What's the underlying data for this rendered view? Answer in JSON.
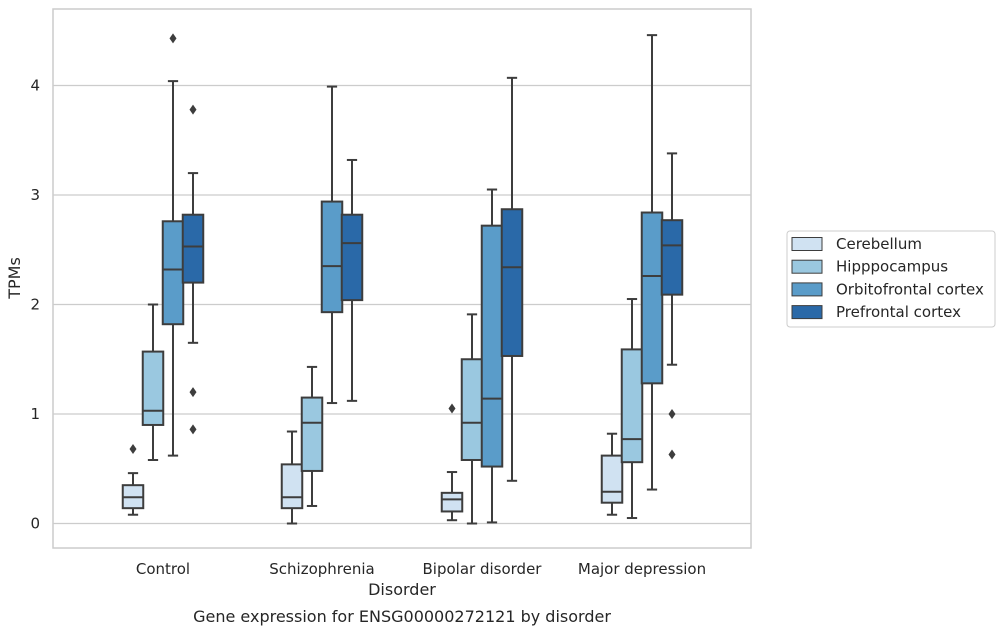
{
  "chart_data": {
    "type": "box",
    "caption": "Gene expression for ENSG00000272121 by disorder",
    "xlabel": "Disorder",
    "ylabel": "TPMs",
    "ylim": [
      -0.2,
      4.7
    ],
    "yticks": [
      0,
      1,
      2,
      3,
      4
    ],
    "grid": "horizontal",
    "legend_position": "right",
    "categories": [
      "Control",
      "Schizophrenia",
      "Bipolar disorder",
      "Major depression"
    ],
    "series": [
      {
        "name": "Cerebellum",
        "color": "#d0e2f2",
        "boxes": [
          {
            "category": "Control",
            "whisker_low": 0.08,
            "q1": 0.14,
            "median": 0.24,
            "q3": 0.35,
            "whisker_high": 0.46,
            "outliers": [
              0.68
            ]
          },
          {
            "category": "Schizophrenia",
            "whisker_low": 0.0,
            "q1": 0.14,
            "median": 0.24,
            "q3": 0.54,
            "whisker_high": 0.84,
            "outliers": []
          },
          {
            "category": "Bipolar disorder",
            "whisker_low": 0.03,
            "q1": 0.11,
            "median": 0.22,
            "q3": 0.28,
            "whisker_high": 0.47,
            "outliers": [
              1.05
            ]
          },
          {
            "category": "Major depression",
            "whisker_low": 0.08,
            "q1": 0.19,
            "median": 0.29,
            "q3": 0.62,
            "whisker_high": 0.82,
            "outliers": []
          }
        ]
      },
      {
        "name": "Hipppocampus",
        "color": "#9ac8e0",
        "boxes": [
          {
            "category": "Control",
            "whisker_low": 0.58,
            "q1": 0.9,
            "median": 1.03,
            "q3": 1.57,
            "whisker_high": 2.0,
            "outliers": []
          },
          {
            "category": "Schizophrenia",
            "whisker_low": 0.16,
            "q1": 0.48,
            "median": 0.92,
            "q3": 1.15,
            "whisker_high": 1.43,
            "outliers": []
          },
          {
            "category": "Bipolar disorder",
            "whisker_low": 0.0,
            "q1": 0.58,
            "median": 0.92,
            "q3": 1.5,
            "whisker_high": 1.91,
            "outliers": []
          },
          {
            "category": "Major depression",
            "whisker_low": 0.05,
            "q1": 0.56,
            "median": 0.77,
            "q3": 1.59,
            "whisker_high": 2.05,
            "outliers": []
          }
        ]
      },
      {
        "name": "Orbitofrontal cortex",
        "color": "#5a9cc9",
        "boxes": [
          {
            "category": "Control",
            "whisker_low": 0.62,
            "q1": 1.82,
            "median": 2.32,
            "q3": 2.76,
            "whisker_high": 4.04,
            "outliers": [
              4.43
            ]
          },
          {
            "category": "Schizophrenia",
            "whisker_low": 1.1,
            "q1": 1.93,
            "median": 2.35,
            "q3": 2.94,
            "whisker_high": 3.99,
            "outliers": []
          },
          {
            "category": "Bipolar disorder",
            "whisker_low": 0.01,
            "q1": 0.52,
            "median": 1.14,
            "q3": 2.72,
            "whisker_high": 3.05,
            "outliers": []
          },
          {
            "category": "Major depression",
            "whisker_low": 0.31,
            "q1": 1.28,
            "median": 2.26,
            "q3": 2.84,
            "whisker_high": 4.46,
            "outliers": []
          }
        ]
      },
      {
        "name": "Prefrontal cortex",
        "color": "#2a69a8",
        "boxes": [
          {
            "category": "Control",
            "whisker_low": 1.65,
            "q1": 2.2,
            "median": 2.53,
            "q3": 2.82,
            "whisker_high": 3.2,
            "outliers": [
              0.86,
              1.2,
              3.78
            ]
          },
          {
            "category": "Schizophrenia",
            "whisker_low": 1.12,
            "q1": 2.04,
            "median": 2.56,
            "q3": 2.82,
            "whisker_high": 3.32,
            "outliers": []
          },
          {
            "category": "Bipolar disorder",
            "whisker_low": 0.39,
            "q1": 1.53,
            "median": 2.34,
            "q3": 2.87,
            "whisker_high": 4.07,
            "outliers": []
          },
          {
            "category": "Major depression",
            "whisker_low": 1.45,
            "q1": 2.09,
            "median": 2.54,
            "q3": 2.77,
            "whisker_high": 3.38,
            "outliers": [
              0.63,
              1.0
            ]
          }
        ]
      }
    ]
  }
}
